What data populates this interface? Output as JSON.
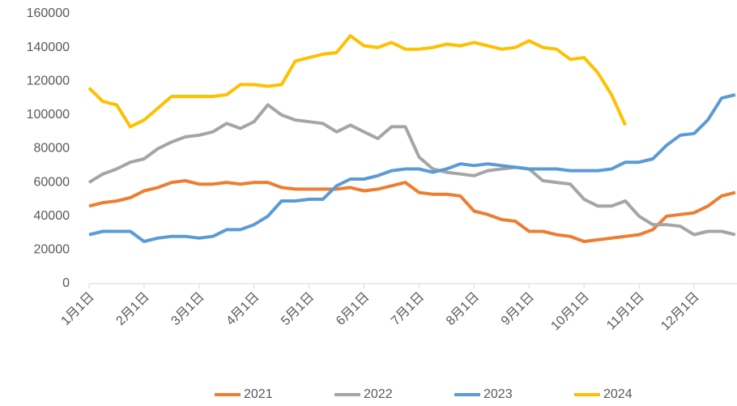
{
  "chart_data": {
    "type": "line",
    "categories": [
      "1月1日",
      null,
      null,
      null,
      "2月1日",
      null,
      null,
      null,
      "3月1日",
      null,
      null,
      null,
      "4月1日",
      null,
      null,
      null,
      "5月1日",
      null,
      null,
      null,
      "6月1日",
      null,
      null,
      null,
      "7月1日",
      null,
      null,
      null,
      "8月1日",
      null,
      null,
      null,
      "9月1日",
      null,
      null,
      null,
      "10月1日",
      null,
      null,
      null,
      "11月1日",
      null,
      null,
      null,
      "12月1日",
      null,
      null,
      null
    ],
    "series": [
      {
        "name": "2021",
        "color": "#ed7d31",
        "values": [
          46000,
          48000,
          49000,
          51000,
          55000,
          57000,
          60000,
          61000,
          59000,
          59000,
          60000,
          59000,
          60000,
          60000,
          57000,
          56000,
          56000,
          56000,
          56000,
          57000,
          55000,
          56000,
          58000,
          60000,
          54000,
          53000,
          53000,
          52000,
          43000,
          41000,
          38000,
          37000,
          31000,
          31000,
          29000,
          28000,
          25000,
          26000,
          27000,
          28000,
          29000,
          32000,
          40000,
          41000,
          42000,
          46000,
          52000,
          54000
        ]
      },
      {
        "name": "2022",
        "color": "#a5a5a5",
        "values": [
          60000,
          65000,
          68000,
          72000,
          74000,
          80000,
          84000,
          87000,
          88000,
          90000,
          95000,
          92000,
          96000,
          106000,
          100000,
          97000,
          96000,
          95000,
          90000,
          94000,
          90000,
          86000,
          93000,
          93000,
          75000,
          68000,
          66000,
          65000,
          64000,
          67000,
          68000,
          69000,
          68000,
          61000,
          60000,
          59000,
          50000,
          46000,
          46000,
          49000,
          40000,
          35000,
          35000,
          34000,
          29000,
          31000,
          31000,
          29000
        ]
      },
      {
        "name": "2023",
        "color": "#5b9bd5",
        "values": [
          29000,
          31000,
          31000,
          31000,
          25000,
          27000,
          28000,
          28000,
          27000,
          28000,
          32000,
          32000,
          35000,
          40000,
          49000,
          49000,
          50000,
          50000,
          58000,
          62000,
          62000,
          64000,
          67000,
          68000,
          68000,
          66000,
          68000,
          71000,
          70000,
          71000,
          70000,
          69000,
          68000,
          68000,
          68000,
          67000,
          67000,
          67000,
          68000,
          72000,
          72000,
          74000,
          82000,
          88000,
          89000,
          97000,
          110000,
          112000
        ]
      },
      {
        "name": "2024",
        "color": "#ffc000",
        "values": [
          116000,
          108000,
          106000,
          93000,
          97000,
          104000,
          111000,
          111000,
          111000,
          111000,
          112000,
          118000,
          118000,
          117000,
          118000,
          132000,
          134000,
          136000,
          137000,
          147000,
          141000,
          140000,
          143000,
          139000,
          139000,
          140000,
          142000,
          141000,
          143000,
          141000,
          139000,
          140000,
          144000,
          140000,
          139000,
          133000,
          134000,
          125000,
          112000,
          94000,
          null,
          null,
          null,
          null,
          null,
          null,
          null,
          null
        ]
      }
    ],
    "ylim": [
      0,
      160000
    ],
    "yticks": [
      0,
      20000,
      40000,
      60000,
      80000,
      100000,
      120000,
      140000,
      160000
    ],
    "grid": false,
    "legend": "bottom"
  }
}
